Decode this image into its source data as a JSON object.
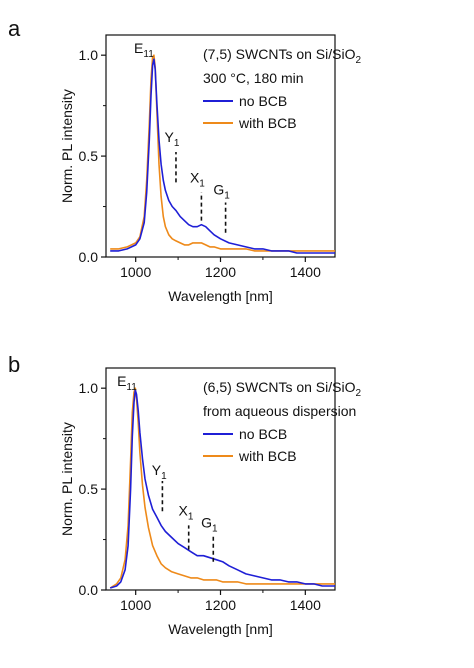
{
  "colors": {
    "no_bcb": "#1f1fd6",
    "with_bcb": "#ee8a1a",
    "axis": "#111111",
    "background": "#ffffff"
  },
  "chart_data": [
    {
      "panel": "a",
      "type": "line",
      "xlabel": "Wavelength [nm]",
      "ylabel": "Norm. PL intensity",
      "xlim": [
        930,
        1470
      ],
      "ylim": [
        0.0,
        1.1
      ],
      "xticks": [
        1000,
        1200,
        1400
      ],
      "yticks": [
        0.0,
        0.5,
        1.0
      ],
      "xtick_labels": [
        "1000",
        "1200",
        "1400"
      ],
      "ytick_labels": [
        "0.0",
        "0.5",
        "1.0"
      ],
      "grid": false,
      "legend_placement": "top-right",
      "annotation": {
        "line1": "(7,5) SWCNTs on Si/SiO",
        "line1_sub": "2",
        "line2": "300 °C, 180 min"
      },
      "peak_labels": [
        {
          "name": "E",
          "sub": "11",
          "x": 1043
        },
        {
          "name": "Y",
          "sub": "1",
          "x": 1095
        },
        {
          "name": "X",
          "sub": "1",
          "x": 1155
        },
        {
          "name": "G",
          "sub": "1",
          "x": 1212
        }
      ],
      "markers": [
        {
          "x": 1095,
          "y_from": 0.37,
          "y_to": 0.52
        },
        {
          "x": 1155,
          "y_from": 0.18,
          "y_to": 0.32
        },
        {
          "x": 1212,
          "y_from": 0.12,
          "y_to": 0.27
        }
      ],
      "series": [
        {
          "name": "no BCB",
          "x": [
            940,
            960,
            980,
            1000,
            1010,
            1020,
            1026,
            1032,
            1036,
            1040,
            1043,
            1046,
            1050,
            1055,
            1060,
            1065,
            1070,
            1078,
            1086,
            1095,
            1105,
            1115,
            1125,
            1135,
            1145,
            1155,
            1165,
            1175,
            1185,
            1200,
            1220,
            1240,
            1260,
            1280,
            1300,
            1320,
            1340,
            1360,
            1380,
            1400,
            1420,
            1440,
            1460,
            1470
          ],
          "y": [
            0.03,
            0.03,
            0.04,
            0.06,
            0.09,
            0.17,
            0.32,
            0.58,
            0.8,
            0.95,
            0.98,
            0.93,
            0.76,
            0.58,
            0.46,
            0.38,
            0.33,
            0.28,
            0.25,
            0.23,
            0.2,
            0.18,
            0.16,
            0.15,
            0.15,
            0.16,
            0.15,
            0.13,
            0.11,
            0.09,
            0.07,
            0.06,
            0.05,
            0.04,
            0.04,
            0.03,
            0.03,
            0.03,
            0.02,
            0.02,
            0.02,
            0.02,
            0.02,
            0.02
          ]
        },
        {
          "name": "with BCB",
          "x": [
            940,
            960,
            980,
            1000,
            1010,
            1020,
            1026,
            1032,
            1036,
            1040,
            1043,
            1046,
            1050,
            1055,
            1060,
            1065,
            1070,
            1078,
            1086,
            1095,
            1105,
            1115,
            1125,
            1135,
            1145,
            1155,
            1165,
            1175,
            1185,
            1200,
            1220,
            1240,
            1260,
            1280,
            1300,
            1320,
            1340,
            1360,
            1380,
            1400,
            1420,
            1440,
            1460,
            1470
          ],
          "y": [
            0.04,
            0.04,
            0.05,
            0.07,
            0.1,
            0.2,
            0.38,
            0.66,
            0.88,
            0.99,
            1.0,
            0.94,
            0.72,
            0.46,
            0.3,
            0.2,
            0.15,
            0.11,
            0.09,
            0.08,
            0.07,
            0.06,
            0.06,
            0.07,
            0.07,
            0.07,
            0.06,
            0.05,
            0.05,
            0.04,
            0.04,
            0.04,
            0.04,
            0.03,
            0.03,
            0.03,
            0.03,
            0.03,
            0.03,
            0.03,
            0.03,
            0.03,
            0.03,
            0.03
          ]
        }
      ]
    },
    {
      "panel": "b",
      "type": "line",
      "xlabel": "Wavelength [nm]",
      "ylabel": "Norm. PL intensity",
      "xlim": [
        930,
        1470
      ],
      "ylim": [
        0.0,
        1.1
      ],
      "xticks": [
        1000,
        1200,
        1400
      ],
      "yticks": [
        0.0,
        0.5,
        1.0
      ],
      "xtick_labels": [
        "1000",
        "1200",
        "1400"
      ],
      "ytick_labels": [
        "0.0",
        "0.5",
        "1.0"
      ],
      "grid": false,
      "legend_placement": "top-right",
      "annotation": {
        "line1": "(6,5) SWCNTs on Si/SiO",
        "line1_sub": "2",
        "line2": "from aqueous dispersion"
      },
      "peak_labels": [
        {
          "name": "E",
          "sub": "11",
          "x": 1003
        },
        {
          "name": "Y",
          "sub": "1",
          "x": 1065
        },
        {
          "name": "X",
          "sub": "1",
          "x": 1128
        },
        {
          "name": "G",
          "sub": "1",
          "x": 1183
        }
      ],
      "markers": [
        {
          "x": 1063,
          "y_from": 0.39,
          "y_to": 0.54
        },
        {
          "x": 1125,
          "y_from": 0.2,
          "y_to": 0.32
        },
        {
          "x": 1183,
          "y_from": 0.14,
          "y_to": 0.27
        }
      ],
      "series": [
        {
          "name": "no BCB",
          "x": [
            940,
            955,
            965,
            975,
            982,
            988,
            992,
            996,
            999,
            1002,
            1006,
            1010,
            1016,
            1022,
            1030,
            1040,
            1050,
            1060,
            1070,
            1085,
            1100,
            1115,
            1130,
            1145,
            1160,
            1175,
            1190,
            1205,
            1220,
            1240,
            1260,
            1280,
            1300,
            1320,
            1340,
            1360,
            1380,
            1400,
            1420,
            1440,
            1460,
            1470
          ],
          "y": [
            0.01,
            0.02,
            0.04,
            0.1,
            0.22,
            0.5,
            0.76,
            0.93,
            0.99,
            0.97,
            0.89,
            0.78,
            0.65,
            0.55,
            0.47,
            0.4,
            0.36,
            0.32,
            0.29,
            0.26,
            0.23,
            0.21,
            0.19,
            0.17,
            0.17,
            0.16,
            0.15,
            0.14,
            0.12,
            0.1,
            0.08,
            0.07,
            0.06,
            0.05,
            0.05,
            0.04,
            0.04,
            0.03,
            0.03,
            0.02,
            0.02,
            0.02
          ]
        },
        {
          "name": "with BCB",
          "x": [
            940,
            955,
            965,
            975,
            982,
            988,
            992,
            996,
            999,
            1002,
            1006,
            1010,
            1016,
            1022,
            1030,
            1040,
            1050,
            1060,
            1070,
            1085,
            1100,
            1115,
            1130,
            1145,
            1160,
            1175,
            1190,
            1205,
            1220,
            1240,
            1260,
            1280,
            1300,
            1320,
            1340,
            1360,
            1380,
            1400,
            1420,
            1440,
            1460,
            1470
          ],
          "y": [
            0.01,
            0.03,
            0.06,
            0.15,
            0.32,
            0.64,
            0.88,
            0.98,
            1.0,
            0.95,
            0.83,
            0.68,
            0.52,
            0.41,
            0.31,
            0.22,
            0.17,
            0.13,
            0.11,
            0.09,
            0.08,
            0.07,
            0.06,
            0.06,
            0.05,
            0.05,
            0.05,
            0.04,
            0.04,
            0.04,
            0.03,
            0.03,
            0.03,
            0.03,
            0.03,
            0.03,
            0.03,
            0.03,
            0.03,
            0.03,
            0.03,
            0.03
          ]
        }
      ]
    }
  ]
}
